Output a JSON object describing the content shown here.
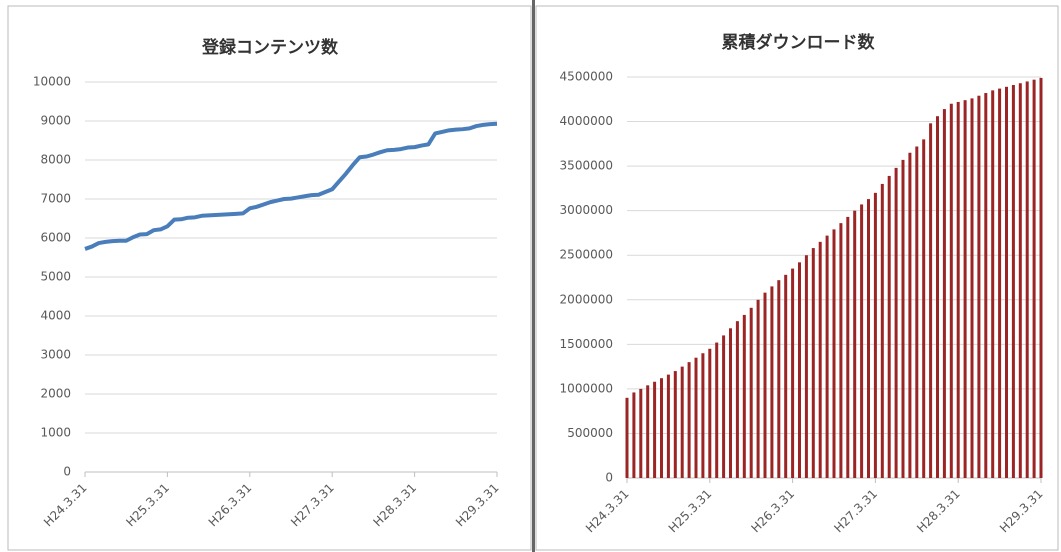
{
  "chart_data": [
    {
      "type": "line",
      "title": "登録コンテンツ数",
      "color": "#4a7ebb",
      "categories": [
        "H24.3.31",
        null,
        null,
        null,
        null,
        null,
        null,
        null,
        null,
        null,
        null,
        null,
        "H25.3.31",
        null,
        null,
        null,
        null,
        null,
        null,
        null,
        null,
        null,
        null,
        null,
        "H26.3.31",
        null,
        null,
        null,
        null,
        null,
        null,
        null,
        null,
        null,
        null,
        null,
        "H27.3.31",
        null,
        null,
        null,
        null,
        null,
        null,
        null,
        null,
        null,
        null,
        null,
        "H28.3.31",
        null,
        null,
        null,
        null,
        null,
        null,
        null,
        null,
        null,
        null,
        null,
        "H29.3.31"
      ],
      "values": [
        5720,
        5780,
        5870,
        5900,
        5920,
        5930,
        5930,
        6020,
        6090,
        6100,
        6200,
        6220,
        6300,
        6470,
        6480,
        6520,
        6530,
        6570,
        6580,
        6590,
        6600,
        6610,
        6620,
        6630,
        6760,
        6800,
        6860,
        6920,
        6960,
        7000,
        7010,
        7040,
        7070,
        7100,
        7110,
        7180,
        7250,
        7450,
        7650,
        7870,
        8070,
        8090,
        8140,
        8200,
        8250,
        8260,
        8280,
        8320,
        8330,
        8370,
        8400,
        8680,
        8720,
        8760,
        8780,
        8790,
        8810,
        8870,
        8900,
        8920,
        8930
      ],
      "ylim": [
        0,
        10000
      ],
      "yticks": [
        0,
        1000,
        2000,
        3000,
        4000,
        5000,
        6000,
        7000,
        8000,
        9000,
        10000
      ],
      "grid": true
    },
    {
      "type": "bar",
      "title": "累積ダウンロード数",
      "color": "#9b2424",
      "categories": [
        "H24.3.31",
        null,
        null,
        null,
        null,
        null,
        null,
        null,
        null,
        null,
        null,
        null,
        "H25.3.31",
        null,
        null,
        null,
        null,
        null,
        null,
        null,
        null,
        null,
        null,
        null,
        "H26.3.31",
        null,
        null,
        null,
        null,
        null,
        null,
        null,
        null,
        null,
        null,
        null,
        "H27.3.31",
        null,
        null,
        null,
        null,
        null,
        null,
        null,
        null,
        null,
        null,
        null,
        "H28.3.31",
        null,
        null,
        null,
        null,
        null,
        null,
        null,
        null,
        null,
        null,
        null,
        "H29.3.31"
      ],
      "values": [
        900000,
        960000,
        1000000,
        1040000,
        1080000,
        1120000,
        1160000,
        1200000,
        1250000,
        1300000,
        1350000,
        1400000,
        1450000,
        1520000,
        1600000,
        1680000,
        1760000,
        1830000,
        1910000,
        2000000,
        2080000,
        2150000,
        2220000,
        2280000,
        2350000,
        2420000,
        2500000,
        2580000,
        2650000,
        2720000,
        2790000,
        2860000,
        2930000,
        3000000,
        3070000,
        3130000,
        3200000,
        3300000,
        3390000,
        3480000,
        3570000,
        3650000,
        3720000,
        3800000,
        3980000,
        4060000,
        4140000,
        4200000,
        4220000,
        4240000,
        4260000,
        4290000,
        4320000,
        4350000,
        4370000,
        4390000,
        4410000,
        4430000,
        4450000,
        4470000,
        4490000
      ],
      "ylim": [
        0,
        4500000
      ],
      "yticks": [
        0,
        500000,
        1000000,
        1500000,
        2000000,
        2500000,
        3000000,
        3500000,
        4000000,
        4500000
      ],
      "grid": true
    }
  ]
}
